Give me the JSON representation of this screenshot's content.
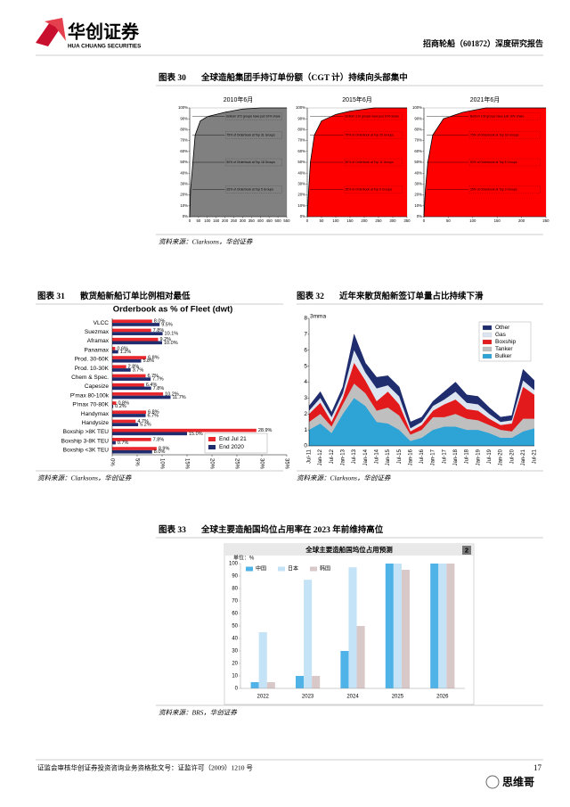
{
  "header": {
    "logo_cn": "华创证券",
    "logo_en": "HUA CHUANG SECURITIES",
    "report": "招商轮船（601872）深度研究报告"
  },
  "figures": [
    {
      "label": "图表 30",
      "title": "全球造船集团手持订单份额（CGT 计）持续向头部集中",
      "source": "资料来源：Clarksons，华创证券"
    },
    {
      "label": "图表 31",
      "title": "散货船新船订单比例相对最低",
      "source": "资料来源：Clarksons，华创证券"
    },
    {
      "label": "图表 32",
      "title": "近年来散货船新签订单量占比持续下滑",
      "source": "资料来源：Clarksons，华创证券"
    },
    {
      "label": "图表 33",
      "title": "全球主要造船国坞位占用率在 2023 年前维持高位",
      "source": "资料来源：BRS，华创证券"
    }
  ],
  "footer": {
    "text": "证监会审核华创证券投资咨询业务资格批文号：证监许可（2009）1210 号",
    "page": "17",
    "watermark": "思维哥"
  },
  "chart_data": [
    {
      "type": "area",
      "title": "2010年6月",
      "x": [
        0,
        5,
        18,
        31,
        60,
        100,
        200,
        300,
        403,
        550
      ],
      "series": [
        {
          "color": "#808080",
          "values": [
            0,
            25,
            50,
            75,
            88,
            92,
            96,
            99,
            100,
            100
          ]
        }
      ],
      "xlim": [
        0,
        550
      ],
      "xticks": [
        0,
        50,
        100,
        150,
        200,
        250,
        300,
        350,
        400,
        450,
        500,
        550
      ],
      "ylim": [
        0,
        100
      ],
      "yticks": [
        {
          "value": 0,
          "label": "0%"
        },
        {
          "value": 10,
          "label": "10%"
        },
        {
          "value": 20,
          "label": "20%"
        },
        {
          "value": 30,
          "label": "30%"
        },
        {
          "value": 40,
          "label": "40%"
        },
        {
          "value": 50,
          "label": "50%"
        },
        {
          "value": 60,
          "label": "60%"
        },
        {
          "value": 70,
          "label": "70%"
        },
        {
          "value": 80,
          "label": "80%"
        },
        {
          "value": 90,
          "label": "90%"
        },
        {
          "value": 100,
          "label": "100%"
        }
      ],
      "annotations": [
        "Bottom 372 groups have just 10% share",
        "75% of Orderbook at Top 31 Groups",
        "50% of Orderbook at Top 18 Groups",
        "25% of Orderbook at Top 5 Groups"
      ]
    },
    {
      "type": "area",
      "title": "2015年6月",
      "x": [
        0,
        5,
        11,
        25,
        50,
        100,
        150,
        235,
        350
      ],
      "series": [
        {
          "color": "#ff0000",
          "values": [
            0,
            25,
            50,
            75,
            88,
            94,
            97,
            100,
            100
          ]
        }
      ],
      "xlim": [
        0,
        350
      ],
      "xticks": [
        0,
        50,
        100,
        150,
        200,
        250,
        300,
        350
      ],
      "ylim": [
        0,
        100
      ],
      "yticks": [
        {
          "value": 0,
          "label": "0%"
        },
        {
          "value": 10,
          "label": "10%"
        },
        {
          "value": 20,
          "label": "20%"
        },
        {
          "value": 30,
          "label": "30%"
        },
        {
          "value": 40,
          "label": "40%"
        },
        {
          "value": 50,
          "label": "50%"
        },
        {
          "value": 60,
          "label": "60%"
        },
        {
          "value": 70,
          "label": "70%"
        },
        {
          "value": 80,
          "label": "80%"
        },
        {
          "value": 90,
          "label": "90%"
        },
        {
          "value": 100,
          "label": "100%"
        }
      ],
      "annotations": [
        "Bottom 210 groups have just 10% share",
        "75% of Orderbook at Top 25 Groups",
        "50% of Orderbook at Top 11 Groups",
        "25% of Orderbook at Top 5 Groups"
      ]
    },
    {
      "type": "area",
      "title": "2021年6月",
      "x": [
        0,
        3,
        8,
        18,
        40,
        80,
        127,
        250
      ],
      "series": [
        {
          "color": "#ff0000",
          "values": [
            0,
            25,
            50,
            75,
            90,
            96,
            100,
            100
          ]
        }
      ],
      "xlim": [
        0,
        250
      ],
      "xticks": [
        0,
        50,
        100,
        150,
        200,
        250
      ],
      "ylim": [
        0,
        100
      ],
      "yticks": [
        {
          "value": 0,
          "label": "0%"
        },
        {
          "value": 10,
          "label": "10%"
        },
        {
          "value": 20,
          "label": "20%"
        },
        {
          "value": 30,
          "label": "30%"
        },
        {
          "value": 40,
          "label": "40%"
        },
        {
          "value": 50,
          "label": "50%"
        },
        {
          "value": 60,
          "label": "60%"
        },
        {
          "value": 70,
          "label": "70%"
        },
        {
          "value": 80,
          "label": "80%"
        },
        {
          "value": 90,
          "label": "90%"
        },
        {
          "value": 100,
          "label": "100%"
        }
      ],
      "annotations": [
        "Bottom 109 groups have just 10% share",
        "75% of Orderbook at Top 18 Groups",
        "50% of Orderbook at Top 8 Groups",
        "25% of Orderbook at Top 3 Groups"
      ]
    },
    {
      "type": "bar",
      "orientation": "horizontal",
      "title": "Orderbook as % of Fleet (dwt)",
      "categories": [
        "VLCC",
        "Suezmax",
        "Aframax",
        "Panamax",
        "Prod. 30-60K",
        "Prod. 10-30K",
        "Chem & Spec.",
        "Capesize",
        "P'max 80-100k",
        "P'max 70-80K",
        "Handymax",
        "Handysize",
        "Boxship >8K TEU",
        "Boxship 3-8K TEU",
        "Boxship <3K TEU"
      ],
      "series": [
        {
          "name": "End Jul 21",
          "color": "#e8262b",
          "values": [
            8.0,
            7.8,
            9.2,
            0.6,
            6.8,
            2.8,
            6.7,
            6.4,
            10.2,
            0.8,
            6.8,
            4.7,
            28.9,
            7.8,
            8.9
          ],
          "value_labels": [
            "8.0%",
            "7.8%",
            "9.2%",
            "0.6%",
            "6.8%",
            "2.8%",
            "6.7%",
            "6.4%",
            "10.2%",
            "0.8%",
            "6.8%",
            "4.7%",
            "28.9%",
            "7.8%",
            "8.9%"
          ]
        },
        {
          "name": "End 2020",
          "color": "#1f2d6e",
          "values": [
            9.5,
            10.1,
            10.0,
            1.2,
            5.8,
            3.7,
            7.7,
            7.8,
            11.7,
            0.2,
            6.7,
            5.2,
            15.0,
            0.7,
            8.0
          ],
          "value_labels": [
            "9.5%",
            "10.1%",
            "10.0%",
            "1.2%",
            "5.8%",
            "3.7%",
            "7.7%",
            "7.8%",
            "11.7%",
            "0.2%",
            "6.7%",
            "5.2%",
            "15.0%",
            "0.7%",
            "8.0%"
          ]
        }
      ],
      "xlim": [
        0,
        35
      ],
      "xticks": [
        {
          "value": 0,
          "label": "0%"
        },
        {
          "value": 5,
          "label": "5%"
        },
        {
          "value": 10,
          "label": "10%"
        },
        {
          "value": 15,
          "label": "15%"
        },
        {
          "value": 20,
          "label": "20%"
        },
        {
          "value": 25,
          "label": "25%"
        },
        {
          "value": 30,
          "label": "30%"
        },
        {
          "value": 35,
          "label": "35%"
        }
      ],
      "legend": "lower-right"
    },
    {
      "type": "area",
      "stacked": true,
      "y_label": "3mma",
      "categories": [
        "Jul-11",
        "Jan-12",
        "Jul-12",
        "Jan-13",
        "Jul-13",
        "Jan-14",
        "Jul-14",
        "Jan-15",
        "Jul-15",
        "Jan-16",
        "Jul-16",
        "Jan-17",
        "Jul-17",
        "Jan-18",
        "Jul-18",
        "Jan-19",
        "Jul-19",
        "Jan-20",
        "Jul-20",
        "Jan-21",
        "Jul-21"
      ],
      "series": [
        {
          "name": "Other",
          "color": "#1f2d6e",
          "values": [
            0.3,
            0.4,
            0.3,
            0.4,
            1.0,
            0.6,
            0.7,
            0.6,
            0.6,
            0.4,
            0.3,
            0.3,
            0.5,
            0.6,
            0.5,
            0.5,
            0.4,
            0.3,
            0.3,
            0.7,
            0.6
          ]
        },
        {
          "name": "Gas",
          "color": "#dde6f0",
          "values": [
            0.2,
            0.3,
            0.3,
            0.3,
            0.8,
            0.5,
            0.8,
            0.4,
            0.5,
            0.2,
            0.2,
            0.3,
            0.3,
            0.5,
            0.4,
            0.4,
            0.3,
            0.2,
            0.2,
            0.4,
            0.3
          ]
        },
        {
          "name": "Boxship",
          "color": "#e31a1c",
          "values": [
            0.5,
            0.7,
            0.3,
            0.4,
            1.3,
            0.8,
            0.6,
            1.0,
            0.7,
            0.2,
            0.3,
            0.4,
            0.8,
            0.9,
            0.6,
            0.6,
            0.4,
            0.3,
            0.5,
            2.0,
            1.5
          ]
        },
        {
          "name": "Tanker",
          "color": "#bfbfbf",
          "values": [
            0.5,
            0.6,
            0.4,
            0.6,
            0.9,
            0.8,
            0.7,
            1.0,
            0.9,
            0.4,
            0.5,
            0.8,
            0.6,
            0.8,
            0.7,
            0.6,
            0.5,
            0.5,
            0.4,
            0.8,
            0.6
          ]
        },
        {
          "name": "Bulker",
          "color": "#2ea3d6",
          "values": [
            1.0,
            1.4,
            0.8,
            2.0,
            3.0,
            2.5,
            1.5,
            1.4,
            1.0,
            0.3,
            0.5,
            1.0,
            1.2,
            1.2,
            1.0,
            1.0,
            0.8,
            0.5,
            0.5,
            0.9,
            1.1
          ]
        }
      ],
      "ylim": [
        0,
        8
      ],
      "yticks": [
        0,
        1,
        2,
        3,
        4,
        5,
        6,
        7,
        8
      ],
      "legend": "upper-right"
    },
    {
      "type": "bar",
      "orientation": "vertical",
      "title": "全球主要造船国坞位占用预测",
      "badge": "2",
      "unit": "单位：%",
      "categories": [
        "2022",
        "2023",
        "2024",
        "2025",
        "2026"
      ],
      "series": [
        {
          "name": "中国",
          "color": "#4fb3e8",
          "values": [
            5,
            10,
            30,
            100,
            100
          ]
        },
        {
          "name": "日本",
          "color": "#c5e3f6",
          "values": [
            45,
            87,
            97,
            100,
            100
          ]
        },
        {
          "name": "韩国",
          "color": "#d9c8c8",
          "values": [
            5,
            10,
            50,
            95,
            100
          ]
        }
      ],
      "ylim": [
        0,
        100
      ],
      "yticks": [
        0,
        10,
        20,
        30,
        40,
        50,
        60,
        70,
        80,
        90,
        100
      ],
      "legend": "upper-left"
    }
  ]
}
